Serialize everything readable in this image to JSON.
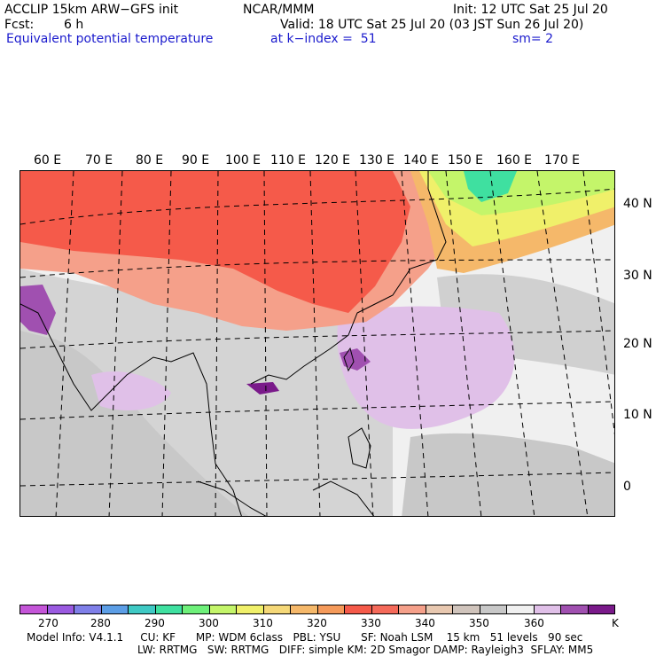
{
  "header": {
    "model": "ACCLIP 15km ARW−GFS init",
    "center": "NCAR/MMM",
    "init": "Init: 12 UTC Sat 25 Jul 20",
    "fcst_label": "Fcst:",
    "fcst_value": "6 h",
    "valid": "Valid: 18 UTC Sat 25 Jul 20 (03 JST Sun 26 Jul 20)",
    "field": "Equivalent potential temperature",
    "level": "at k−index =  51",
    "smoothing": "sm= 2"
  },
  "map": {
    "lon_labels": [
      "60 E",
      "70 E",
      "80 E",
      "90 E",
      "100 E",
      "110 E",
      "120 E",
      "130 E",
      "140 E",
      "150 E",
      "160 E",
      "170 E"
    ],
    "lat_labels": [
      "40 N",
      "30 N",
      "20 N",
      "10 N",
      "0"
    ]
  },
  "colorbar": {
    "colors": [
      "#c455d8",
      "#9a5ae0",
      "#7f7fe8",
      "#5c9ee6",
      "#3fc9c4",
      "#3fe0a0",
      "#6ef07a",
      "#c4f56a",
      "#f0f06a",
      "#f5d878",
      "#f5b86a",
      "#f59a5a",
      "#f55a4a",
      "#f56a5a",
      "#f5a08a",
      "#e8c8b0",
      "#d0c4bc",
      "#c8c8c8",
      "#f0f0f0",
      "#e0c0e8",
      "#a050b0",
      "#7a1a8a"
    ],
    "labels": [
      "270",
      "280",
      "290",
      "300",
      "310",
      "320",
      "330",
      "340",
      "350",
      "360",
      "K"
    ]
  },
  "model_info": {
    "line1": "Model Info: V4.1.1     CU: KF      MP: WDM 6class   PBL: YSU      SF: Noah LSM    15 km   51 levels   90 sec",
    "line2": "LW: RRTMG   SW: RRTMG   DIFF: simple KM: 2D Smagor DAMP: Rayleigh3  SFLAY: MM5"
  }
}
